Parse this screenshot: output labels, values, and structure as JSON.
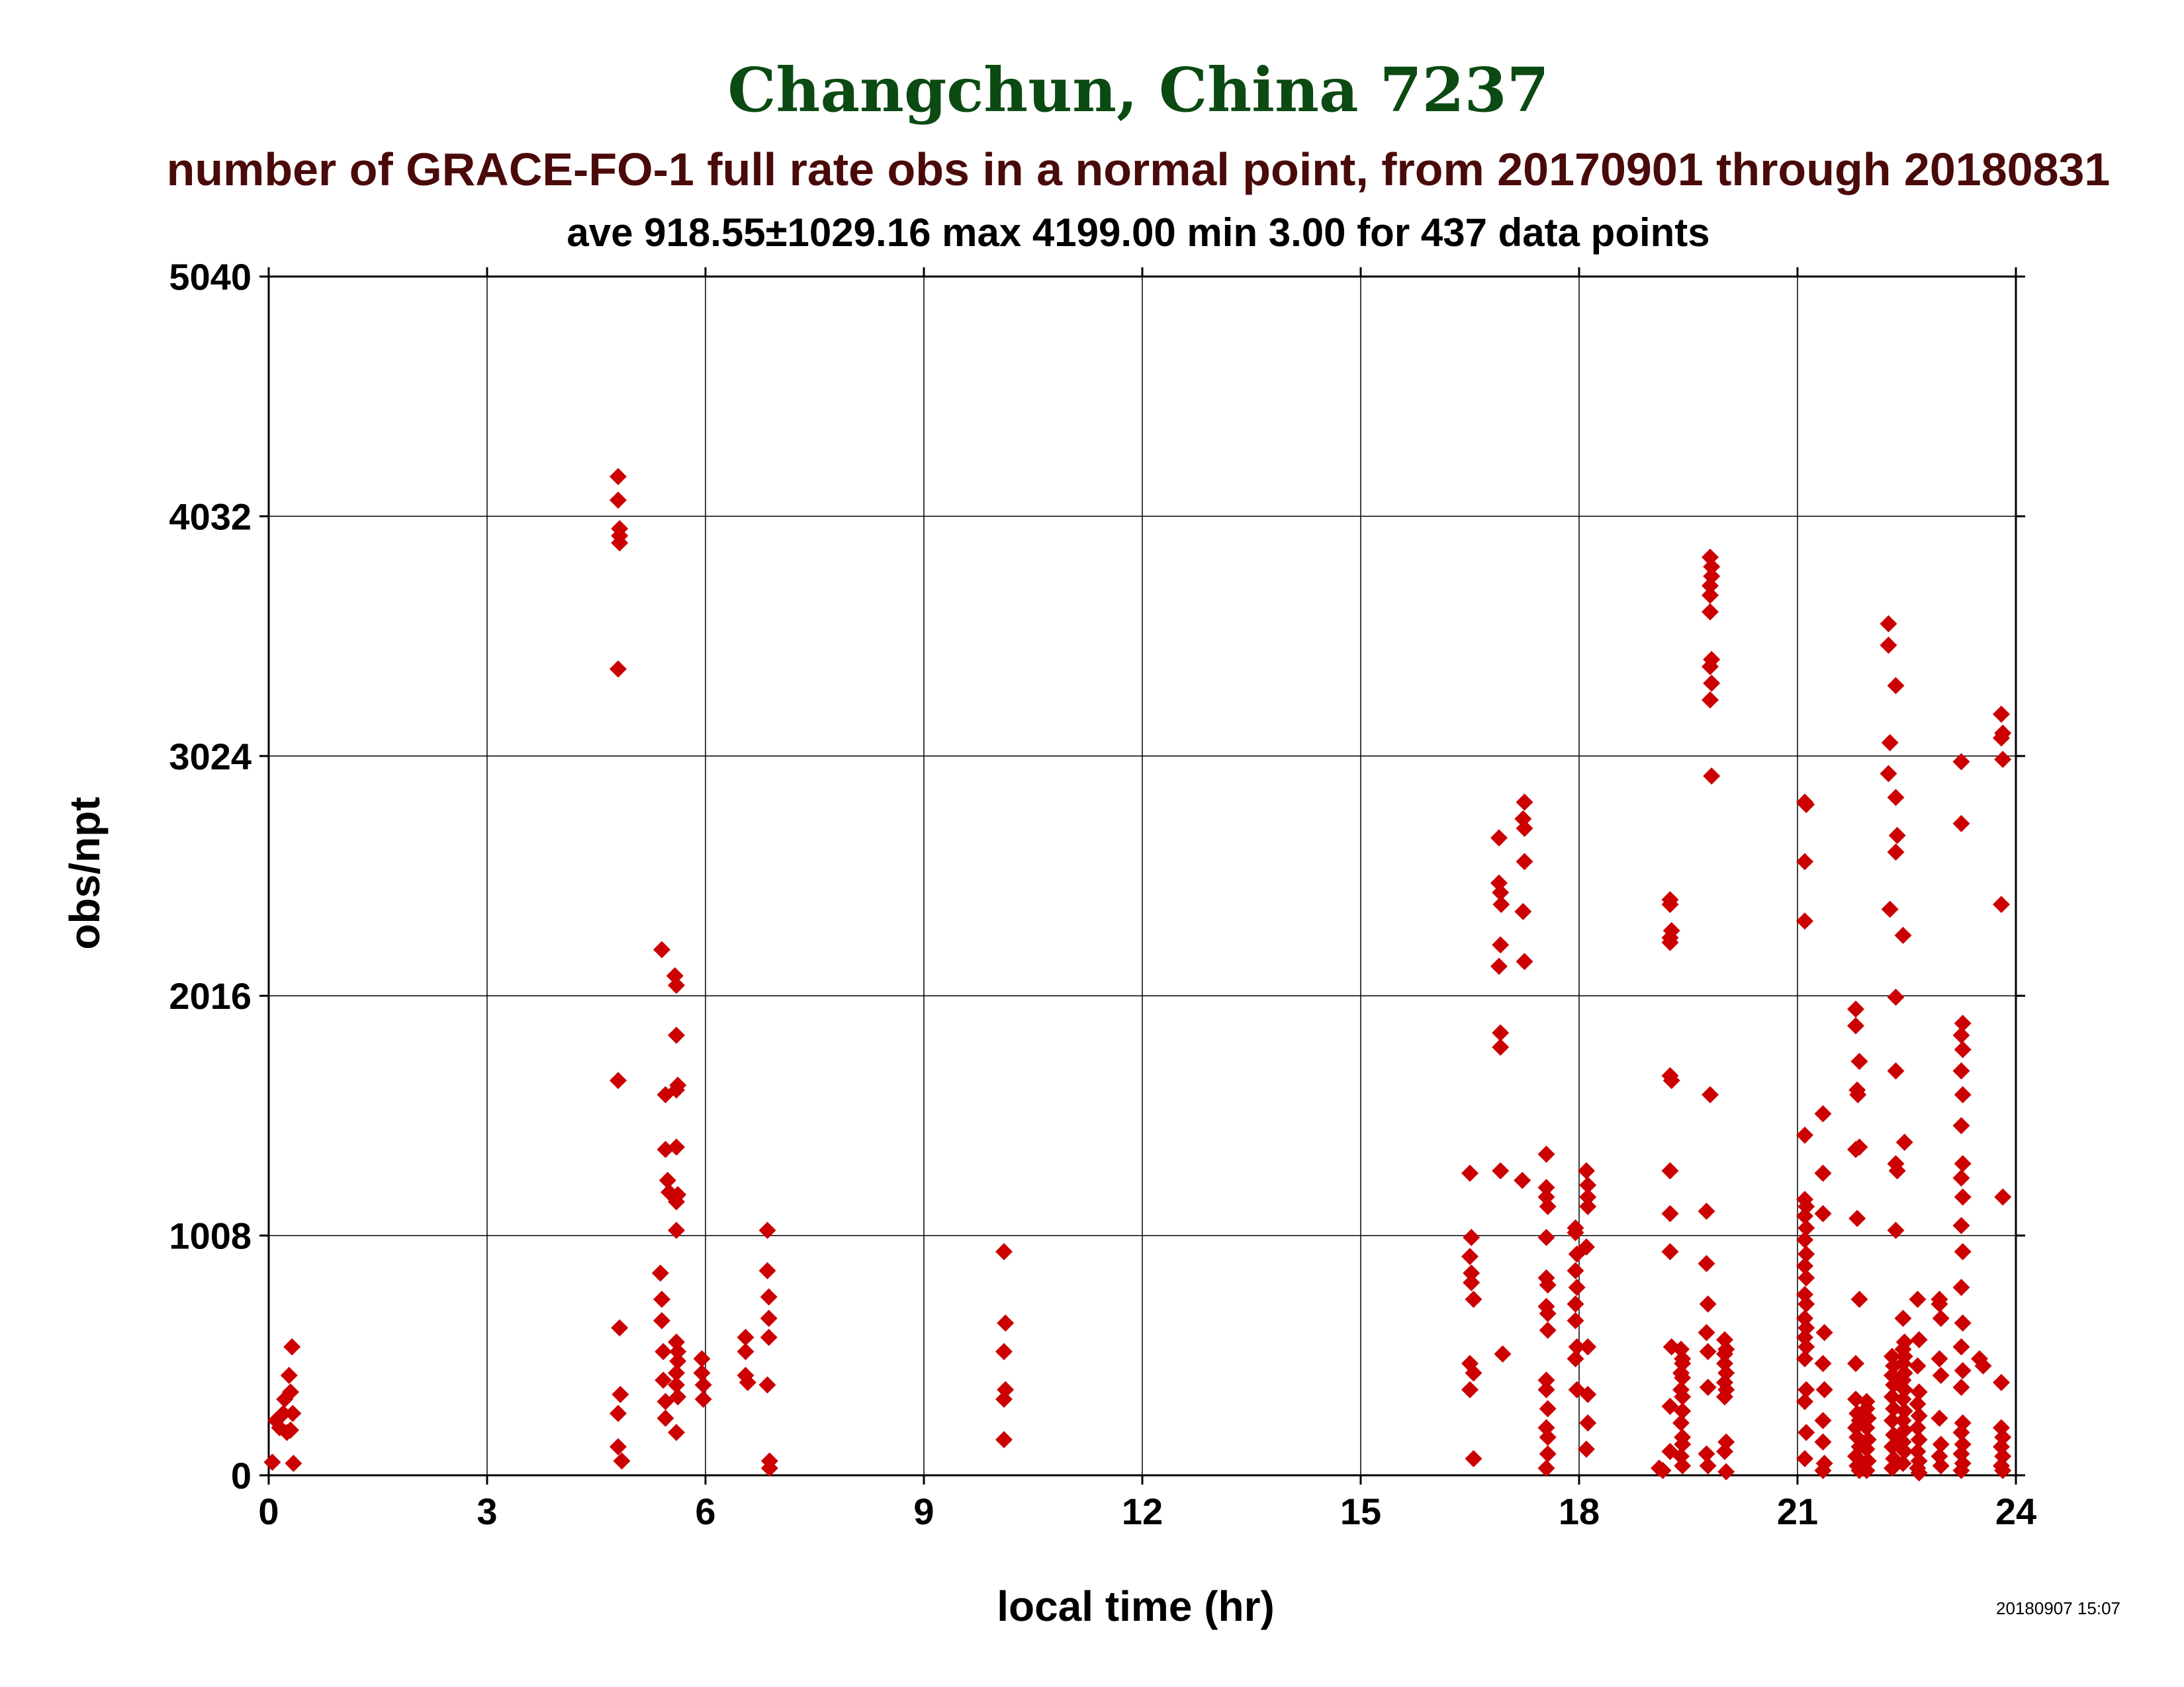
{
  "chart_data": {
    "type": "scatter",
    "title": "Changchun, China 7237",
    "subtitle": "number of GRACE-FO-1 full rate obs in a normal point, from 20170901 through 20180831",
    "stats_line": "ave 918.55±1029.16 max 4199.00 min 3.00 for 437 data points",
    "xlabel": "local time (hr)",
    "ylabel": "obs/npt",
    "timestamp": "20180907 15:07",
    "xlim": [
      0,
      24
    ],
    "ylim": [
      0,
      5040
    ],
    "xticks": [
      0,
      3,
      6,
      9,
      12,
      15,
      18,
      21,
      24
    ],
    "yticks": [
      0,
      1008,
      2016,
      3024,
      4032,
      5040
    ],
    "grid": true,
    "marker": "diamond",
    "colors": {
      "title": "#0b4a12",
      "subtitle": "#4a0a0a",
      "text": "#000000",
      "marker": "#cc0000",
      "grid": "#000000"
    },
    "points": [
      [
        0.05,
        55
      ],
      [
        0.1,
        230
      ],
      [
        0.15,
        200
      ],
      [
        0.2,
        260
      ],
      [
        0.22,
        320
      ],
      [
        0.25,
        180
      ],
      [
        0.28,
        420
      ],
      [
        0.3,
        350
      ],
      [
        0.32,
        540
      ],
      [
        0.33,
        260
      ],
      [
        0.34,
        50
      ],
      [
        0.3,
        190
      ],
      [
        4.8,
        4199
      ],
      [
        4.8,
        4100
      ],
      [
        4.82,
        3980
      ],
      [
        4.82,
        3950
      ],
      [
        4.82,
        3920
      ],
      [
        4.8,
        3390
      ],
      [
        4.8,
        1660
      ],
      [
        4.82,
        620
      ],
      [
        4.83,
        340
      ],
      [
        4.8,
        120
      ],
      [
        4.85,
        60
      ],
      [
        4.8,
        260
      ],
      [
        5.4,
        2210
      ],
      [
        5.45,
        1600
      ],
      [
        5.45,
        1370
      ],
      [
        5.48,
        1240
      ],
      [
        5.5,
        1190
      ],
      [
        5.38,
        850
      ],
      [
        5.4,
        740
      ],
      [
        5.4,
        650
      ],
      [
        5.42,
        520
      ],
      [
        5.42,
        400
      ],
      [
        5.45,
        310
      ],
      [
        5.45,
        240
      ],
      [
        5.58,
        2100
      ],
      [
        5.6,
        2060
      ],
      [
        5.6,
        1850
      ],
      [
        5.6,
        1620
      ],
      [
        5.62,
        1640
      ],
      [
        5.6,
        1380
      ],
      [
        5.62,
        1180
      ],
      [
        5.6,
        1150
      ],
      [
        5.6,
        1030
      ],
      [
        5.6,
        560
      ],
      [
        5.62,
        520
      ],
      [
        5.62,
        480
      ],
      [
        5.6,
        430
      ],
      [
        5.6,
        380
      ],
      [
        5.62,
        330
      ],
      [
        5.6,
        180
      ],
      [
        5.95,
        490
      ],
      [
        5.95,
        430
      ],
      [
        5.97,
        380
      ],
      [
        5.97,
        320
      ],
      [
        6.55,
        580
      ],
      [
        6.55,
        520
      ],
      [
        6.55,
        420
      ],
      [
        6.58,
        390
      ],
      [
        6.85,
        1030
      ],
      [
        6.85,
        860
      ],
      [
        6.87,
        750
      ],
      [
        6.87,
        660
      ],
      [
        6.87,
        580
      ],
      [
        6.85,
        380
      ],
      [
        6.88,
        60
      ],
      [
        6.88,
        30
      ],
      [
        10.1,
        940
      ],
      [
        10.12,
        640
      ],
      [
        10.1,
        520
      ],
      [
        10.12,
        360
      ],
      [
        10.1,
        320
      ],
      [
        10.1,
        150
      ],
      [
        16.5,
        1270
      ],
      [
        16.52,
        1000
      ],
      [
        16.5,
        920
      ],
      [
        16.52,
        850
      ],
      [
        16.52,
        810
      ],
      [
        16.55,
        740
      ],
      [
        16.5,
        470
      ],
      [
        16.55,
        430
      ],
      [
        16.5,
        360
      ],
      [
        16.55,
        70
      ],
      [
        16.9,
        2680
      ],
      [
        16.9,
        2490
      ],
      [
        16.92,
        2450
      ],
      [
        16.93,
        2400
      ],
      [
        16.92,
        2230
      ],
      [
        16.9,
        2140
      ],
      [
        16.92,
        1860
      ],
      [
        16.92,
        1800
      ],
      [
        16.92,
        1280
      ],
      [
        16.95,
        510
      ],
      [
        17.25,
        2830
      ],
      [
        17.23,
        2760
      ],
      [
        17.25,
        2720
      ],
      [
        17.25,
        2580
      ],
      [
        17.23,
        2370
      ],
      [
        17.25,
        2160
      ],
      [
        17.22,
        1240
      ],
      [
        17.55,
        1350
      ],
      [
        17.55,
        1210
      ],
      [
        17.55,
        1170
      ],
      [
        17.57,
        1130
      ],
      [
        17.55,
        1000
      ],
      [
        17.55,
        830
      ],
      [
        17.57,
        800
      ],
      [
        17.55,
        710
      ],
      [
        17.57,
        680
      ],
      [
        17.57,
        610
      ],
      [
        17.55,
        400
      ],
      [
        17.55,
        360
      ],
      [
        17.57,
        280
      ],
      [
        17.55,
        200
      ],
      [
        17.57,
        160
      ],
      [
        17.57,
        90
      ],
      [
        17.55,
        30
      ],
      [
        17.95,
        1040
      ],
      [
        17.95,
        1020
      ],
      [
        17.97,
        930
      ],
      [
        17.95,
        860
      ],
      [
        17.97,
        790
      ],
      [
        17.95,
        720
      ],
      [
        17.95,
        650
      ],
      [
        17.97,
        540
      ],
      [
        17.95,
        490
      ],
      [
        17.97,
        360
      ],
      [
        18.1,
        1280
      ],
      [
        18.12,
        1220
      ],
      [
        18.12,
        1170
      ],
      [
        18.12,
        1130
      ],
      [
        18.1,
        960
      ],
      [
        18.12,
        540
      ],
      [
        18.12,
        340
      ],
      [
        18.12,
        220
      ],
      [
        18.1,
        110
      ],
      [
        19.1,
        30
      ],
      [
        19.15,
        20
      ],
      [
        19.25,
        2420
      ],
      [
        19.25,
        2400
      ],
      [
        19.27,
        2290
      ],
      [
        19.25,
        2260
      ],
      [
        19.25,
        2240
      ],
      [
        19.25,
        1680
      ],
      [
        19.27,
        1660
      ],
      [
        19.25,
        1280
      ],
      [
        19.25,
        1100
      ],
      [
        19.25,
        940
      ],
      [
        19.27,
        540
      ],
      [
        19.25,
        290
      ],
      [
        19.25,
        100
      ],
      [
        19.4,
        530
      ],
      [
        19.42,
        490
      ],
      [
        19.42,
        470
      ],
      [
        19.4,
        430
      ],
      [
        19.42,
        410
      ],
      [
        19.4,
        360
      ],
      [
        19.42,
        330
      ],
      [
        19.42,
        270
      ],
      [
        19.4,
        220
      ],
      [
        19.42,
        160
      ],
      [
        19.42,
        130
      ],
      [
        19.4,
        80
      ],
      [
        19.42,
        40
      ],
      [
        19.75,
        1110
      ],
      [
        19.75,
        890
      ],
      [
        19.77,
        720
      ],
      [
        19.75,
        600
      ],
      [
        19.77,
        520
      ],
      [
        19.77,
        370
      ],
      [
        19.75,
        90
      ],
      [
        19.77,
        40
      ],
      [
        19.8,
        3860
      ],
      [
        19.82,
        3820
      ],
      [
        19.82,
        3780
      ],
      [
        19.8,
        3740
      ],
      [
        19.8,
        3700
      ],
      [
        19.8,
        3630
      ],
      [
        19.82,
        3430
      ],
      [
        19.8,
        3400
      ],
      [
        19.82,
        3330
      ],
      [
        19.8,
        3260
      ],
      [
        19.82,
        2940
      ],
      [
        19.8,
        1600
      ],
      [
        20.0,
        570
      ],
      [
        20.02,
        530
      ],
      [
        20.0,
        510
      ],
      [
        20.0,
        470
      ],
      [
        20.02,
        430
      ],
      [
        20.0,
        390
      ],
      [
        20.02,
        360
      ],
      [
        20.0,
        330
      ],
      [
        20.02,
        140
      ],
      [
        20.0,
        100
      ],
      [
        20.02,
        15
      ],
      [
        21.1,
        2830
      ],
      [
        21.12,
        2820
      ],
      [
        21.1,
        2580
      ],
      [
        21.1,
        2330
      ],
      [
        21.1,
        1430
      ],
      [
        21.1,
        1160
      ],
      [
        21.12,
        1130
      ],
      [
        21.1,
        1090
      ],
      [
        21.12,
        1040
      ],
      [
        21.1,
        990
      ],
      [
        21.12,
        930
      ],
      [
        21.1,
        880
      ],
      [
        21.12,
        830
      ],
      [
        21.1,
        760
      ],
      [
        21.12,
        720
      ],
      [
        21.1,
        660
      ],
      [
        21.12,
        620
      ],
      [
        21.1,
        580
      ],
      [
        21.12,
        540
      ],
      [
        21.1,
        490
      ],
      [
        21.12,
        360
      ],
      [
        21.1,
        310
      ],
      [
        21.12,
        180
      ],
      [
        21.1,
        70
      ],
      [
        21.35,
        1520
      ],
      [
        21.35,
        1270
      ],
      [
        21.35,
        1100
      ],
      [
        21.37,
        600
      ],
      [
        21.35,
        470
      ],
      [
        21.37,
        360
      ],
      [
        21.35,
        230
      ],
      [
        21.35,
        140
      ],
      [
        21.37,
        50
      ],
      [
        21.35,
        20
      ],
      [
        21.8,
        1960
      ],
      [
        21.8,
        1890
      ],
      [
        21.82,
        1620
      ],
      [
        21.83,
        1600
      ],
      [
        21.8,
        1370
      ],
      [
        21.82,
        1080
      ],
      [
        21.85,
        1740
      ],
      [
        21.85,
        1380
      ],
      [
        21.85,
        740
      ],
      [
        21.8,
        470
      ],
      [
        21.8,
        320
      ],
      [
        21.82,
        260
      ],
      [
        21.85,
        230
      ],
      [
        21.8,
        200
      ],
      [
        21.82,
        160
      ],
      [
        21.85,
        120
      ],
      [
        21.8,
        80
      ],
      [
        21.82,
        40
      ],
      [
        21.85,
        20
      ],
      [
        21.95,
        310
      ],
      [
        21.95,
        280
      ],
      [
        21.97,
        240
      ],
      [
        21.95,
        200
      ],
      [
        21.97,
        150
      ],
      [
        21.95,
        110
      ],
      [
        21.97,
        60
      ],
      [
        21.95,
        20
      ],
      [
        22.25,
        3580
      ],
      [
        22.25,
        3490
      ],
      [
        22.27,
        3080
      ],
      [
        22.25,
        2950
      ],
      [
        22.27,
        2380
      ],
      [
        22.35,
        3320
      ],
      [
        22.35,
        2850
      ],
      [
        22.37,
        2690
      ],
      [
        22.35,
        2620
      ],
      [
        22.35,
        2010
      ],
      [
        22.35,
        1700
      ],
      [
        22.35,
        1310
      ],
      [
        22.37,
        1280
      ],
      [
        22.35,
        1030
      ],
      [
        22.45,
        2270
      ],
      [
        22.47,
        1400
      ],
      [
        22.3,
        500
      ],
      [
        22.32,
        460
      ],
      [
        22.3,
        420
      ],
      [
        22.32,
        380
      ],
      [
        22.3,
        330
      ],
      [
        22.32,
        280
      ],
      [
        22.3,
        230
      ],
      [
        22.32,
        170
      ],
      [
        22.3,
        120
      ],
      [
        22.32,
        70
      ],
      [
        22.3,
        30
      ],
      [
        22.45,
        660
      ],
      [
        22.47,
        560
      ],
      [
        22.45,
        530
      ],
      [
        22.47,
        500
      ],
      [
        22.45,
        470
      ],
      [
        22.47,
        430
      ],
      [
        22.45,
        400
      ],
      [
        22.47,
        360
      ],
      [
        22.45,
        320
      ],
      [
        22.47,
        270
      ],
      [
        22.45,
        230
      ],
      [
        22.47,
        190
      ],
      [
        22.45,
        140
      ],
      [
        22.47,
        100
      ],
      [
        22.45,
        50
      ],
      [
        22.65,
        740
      ],
      [
        22.67,
        570
      ],
      [
        22.65,
        460
      ],
      [
        22.67,
        350
      ],
      [
        22.65,
        300
      ],
      [
        22.67,
        250
      ],
      [
        22.65,
        200
      ],
      [
        22.67,
        150
      ],
      [
        22.65,
        100
      ],
      [
        22.67,
        60
      ],
      [
        22.65,
        30
      ],
      [
        22.67,
        10
      ],
      [
        22.95,
        740
      ],
      [
        22.95,
        720
      ],
      [
        22.97,
        660
      ],
      [
        22.95,
        490
      ],
      [
        22.97,
        420
      ],
      [
        22.95,
        240
      ],
      [
        22.97,
        130
      ],
      [
        22.95,
        80
      ],
      [
        22.97,
        40
      ],
      [
        23.25,
        3000
      ],
      [
        23.25,
        2740
      ],
      [
        23.27,
        1900
      ],
      [
        23.25,
        1850
      ],
      [
        23.27,
        1790
      ],
      [
        23.25,
        1700
      ],
      [
        23.27,
        1600
      ],
      [
        23.25,
        1470
      ],
      [
        23.27,
        1310
      ],
      [
        23.25,
        1250
      ],
      [
        23.27,
        1170
      ],
      [
        23.25,
        1050
      ],
      [
        23.27,
        940
      ],
      [
        23.25,
        790
      ],
      [
        23.27,
        640
      ],
      [
        23.25,
        540
      ],
      [
        23.27,
        440
      ],
      [
        23.25,
        370
      ],
      [
        23.27,
        220
      ],
      [
        23.25,
        180
      ],
      [
        23.27,
        130
      ],
      [
        23.25,
        90
      ],
      [
        23.27,
        50
      ],
      [
        23.25,
        20
      ],
      [
        23.5,
        490
      ],
      [
        23.55,
        460
      ],
      [
        23.8,
        3200
      ],
      [
        23.82,
        3120
      ],
      [
        23.8,
        3100
      ],
      [
        23.82,
        3010
      ],
      [
        23.8,
        2400
      ],
      [
        23.82,
        1170
      ],
      [
        23.8,
        390
      ],
      [
        23.8,
        200
      ],
      [
        23.82,
        160
      ],
      [
        23.8,
        120
      ],
      [
        23.82,
        80
      ],
      [
        23.8,
        40
      ],
      [
        23.82,
        20
      ]
    ]
  }
}
